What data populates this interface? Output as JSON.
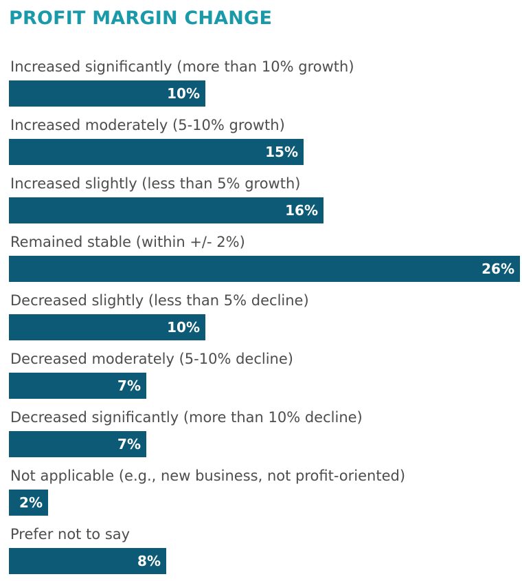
{
  "chart_data": {
    "type": "bar",
    "orientation": "horizontal",
    "title": "PROFIT MARGIN CHANGE",
    "categories": [
      "Increased significantly (more than 10% growth)",
      "Increased moderately (5-10% growth)",
      "Increased slightly (less than 5% growth)",
      "Remained stable (within +/- 2%)",
      "Decreased slightly (less than 5% decline)",
      "Decreased moderately (5-10% decline)",
      "Decreased significantly (more than 10% decline)",
      "Not applicable (e.g., new business, not profit-oriented)",
      "Prefer not to say"
    ],
    "values": [
      10,
      15,
      16,
      26,
      10,
      7,
      7,
      2,
      8
    ],
    "value_labels": [
      "10%",
      "15%",
      "16%",
      "26%",
      "10%",
      "7%",
      "7%",
      "2%",
      "8%"
    ],
    "unit": "%",
    "xlim": [
      0,
      26
    ],
    "xlabel": "",
    "ylabel": "",
    "grid": false,
    "bar_color": "#0c5a75",
    "title_color": "#1a9aa8"
  }
}
